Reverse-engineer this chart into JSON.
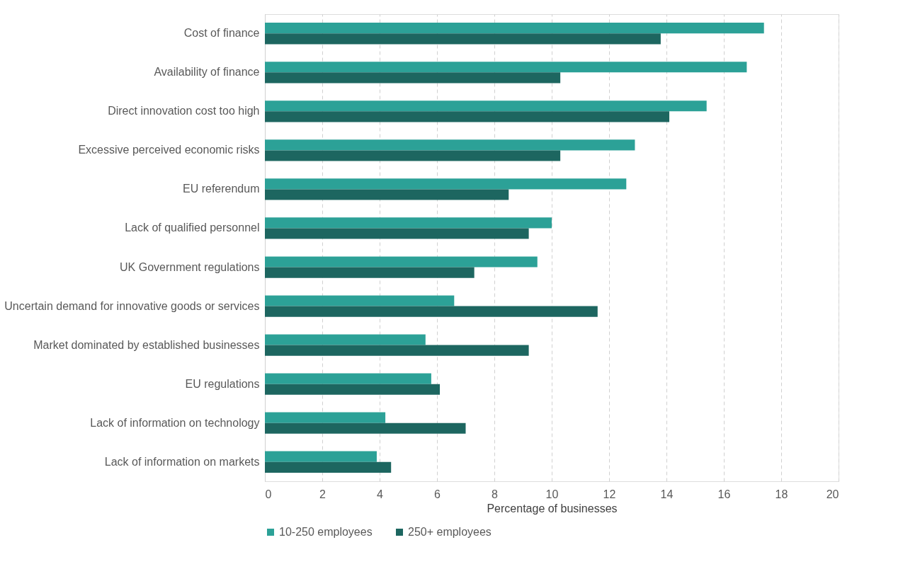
{
  "chart_data": {
    "type": "bar",
    "orientation": "horizontal",
    "categories": [
      "Cost of finance",
      "Availability of finance",
      "Direct innovation cost too high",
      "Excessive perceived economic risks",
      "EU referendum",
      "Lack of qualified personnel",
      "UK Government regulations",
      "Uncertain demand for innovative goods or services",
      "Market dominated by established businesses",
      "EU regulations",
      "Lack of information on technology",
      "Lack of information on markets"
    ],
    "series": [
      {
        "name": "10-250 employees",
        "color": "#2ca197",
        "values": [
          17.4,
          16.8,
          15.4,
          12.9,
          12.6,
          10.0,
          9.5,
          6.6,
          5.6,
          5.8,
          4.2,
          3.9
        ]
      },
      {
        "name": "250+ employees",
        "color": "#1d6660",
        "values": [
          13.8,
          10.3,
          14.1,
          10.3,
          8.5,
          9.2,
          7.3,
          11.6,
          9.2,
          6.1,
          7.0,
          4.4
        ]
      }
    ],
    "xlabel": "Percentage of businesses",
    "xlim": [
      0,
      20
    ],
    "xticks": [
      0,
      2,
      4,
      6,
      8,
      10,
      12,
      14,
      16,
      18,
      20
    ],
    "grid": "x",
    "legend": "bottom"
  }
}
